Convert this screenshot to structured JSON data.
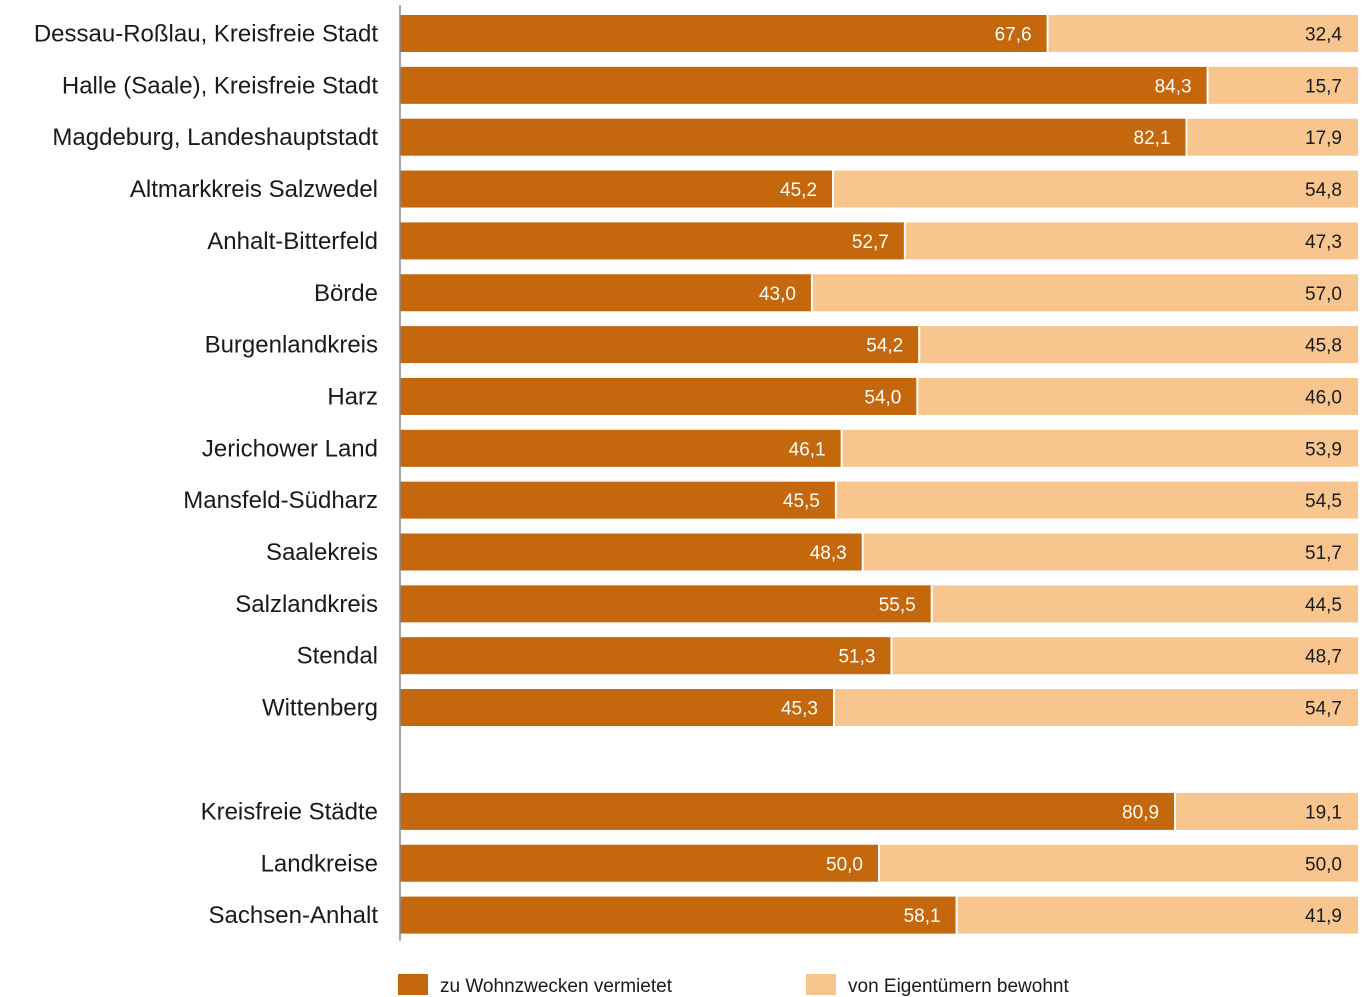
{
  "chart_data": {
    "type": "bar",
    "orientation": "horizontal",
    "stacked": true,
    "percent": true,
    "categories": [
      "Dessau-Roßlau, Kreisfreie Stadt",
      "Halle (Saale), Kreisfreie Stadt",
      "Magdeburg, Landeshauptstadt",
      "Altmarkkreis Salzwedel",
      "Anhalt-Bitterfeld",
      "Börde",
      "Burgenlandkreis",
      "Harz",
      "Jerichower Land",
      "Mansfeld-Südharz",
      "Saalekreis",
      "Salzlandkreis",
      "Stendal",
      "Wittenberg",
      "Kreisfreie Städte",
      "Landkreise",
      "Sachsen-Anhalt"
    ],
    "series": [
      {
        "name": "zu Wohnzwecken vermietet",
        "color": "#c5670c",
        "label_color": "#ffffff",
        "values": [
          67.6,
          84.3,
          82.1,
          45.2,
          52.7,
          43.0,
          54.2,
          54.0,
          46.1,
          45.5,
          48.3,
          55.5,
          51.3,
          45.3,
          80.9,
          50.0,
          58.1
        ],
        "labels": [
          "67,6",
          "84,3",
          "82,1",
          "45,2",
          "52,7",
          "43,0",
          "54,2",
          "54,0",
          "46,1",
          "45,5",
          "48,3",
          "55,5",
          "51,3",
          "45,3",
          "80,9",
          "50,0",
          "58,1"
        ]
      },
      {
        "name": "von Eigentümern bewohnt",
        "color": "#f8c58f",
        "label_color": "#1a1a1a",
        "values": [
          32.4,
          15.7,
          17.9,
          54.8,
          47.3,
          57.0,
          45.8,
          46.0,
          53.9,
          54.5,
          51.7,
          44.5,
          48.7,
          54.7,
          19.1,
          50.0,
          41.9
        ],
        "labels": [
          "32,4",
          "15,7",
          "17,9",
          "54,8",
          "47,3",
          "57,0",
          "45,8",
          "46,0",
          "53,9",
          "54,5",
          "51,7",
          "44,5",
          "48,7",
          "54,7",
          "19,1",
          "50,0",
          "41,9"
        ]
      }
    ],
    "group_break_after_index": 13,
    "xlim": [
      0,
      100
    ],
    "xlabel": "",
    "ylabel": "",
    "grid": false,
    "legend_position": "bottom"
  },
  "legend": {
    "items": [
      {
        "label": "zu Wohnzwecken vermietet",
        "color": "#c5670c"
      },
      {
        "label": "von Eigentümern bewohnt",
        "color": "#f8c58f"
      }
    ]
  }
}
